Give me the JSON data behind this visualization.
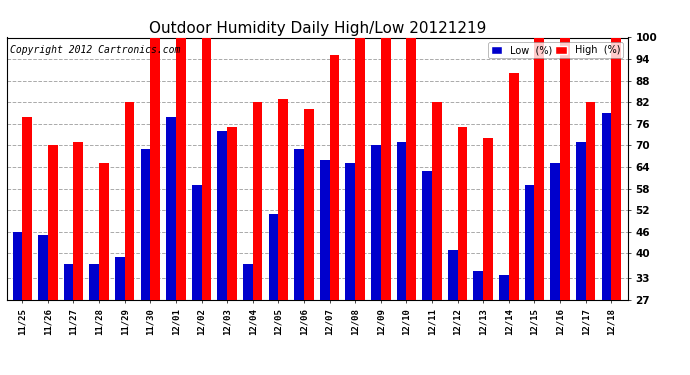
{
  "title": "Outdoor Humidity Daily High/Low 20121219",
  "copyright": "Copyright 2012 Cartronics.com",
  "dates": [
    "11/25",
    "11/26",
    "11/27",
    "11/28",
    "11/29",
    "11/30",
    "12/01",
    "12/02",
    "12/03",
    "12/04",
    "12/05",
    "12/06",
    "12/07",
    "12/08",
    "12/09",
    "12/10",
    "12/11",
    "12/12",
    "12/13",
    "12/14",
    "12/15",
    "12/16",
    "12/17",
    "12/18"
  ],
  "high": [
    78,
    70,
    71,
    65,
    82,
    100,
    100,
    100,
    75,
    82,
    83,
    80,
    95,
    100,
    100,
    100,
    82,
    75,
    72,
    90,
    100,
    100,
    82,
    100
  ],
  "low": [
    46,
    45,
    37,
    37,
    39,
    69,
    78,
    59,
    74,
    37,
    51,
    69,
    66,
    65,
    70,
    71,
    63,
    41,
    35,
    34,
    59,
    65,
    71,
    79
  ],
  "high_color": "#ff0000",
  "low_color": "#0000cc",
  "bg_color": "#ffffff",
  "plot_bg_color": "#ffffff",
  "grid_color": "#aaaaaa",
  "title_fontsize": 11,
  "copyright_fontsize": 7,
  "ylim_min": 27,
  "ylim_max": 100,
  "yticks": [
    27,
    33,
    40,
    46,
    52,
    58,
    64,
    70,
    76,
    82,
    88,
    94,
    100
  ]
}
